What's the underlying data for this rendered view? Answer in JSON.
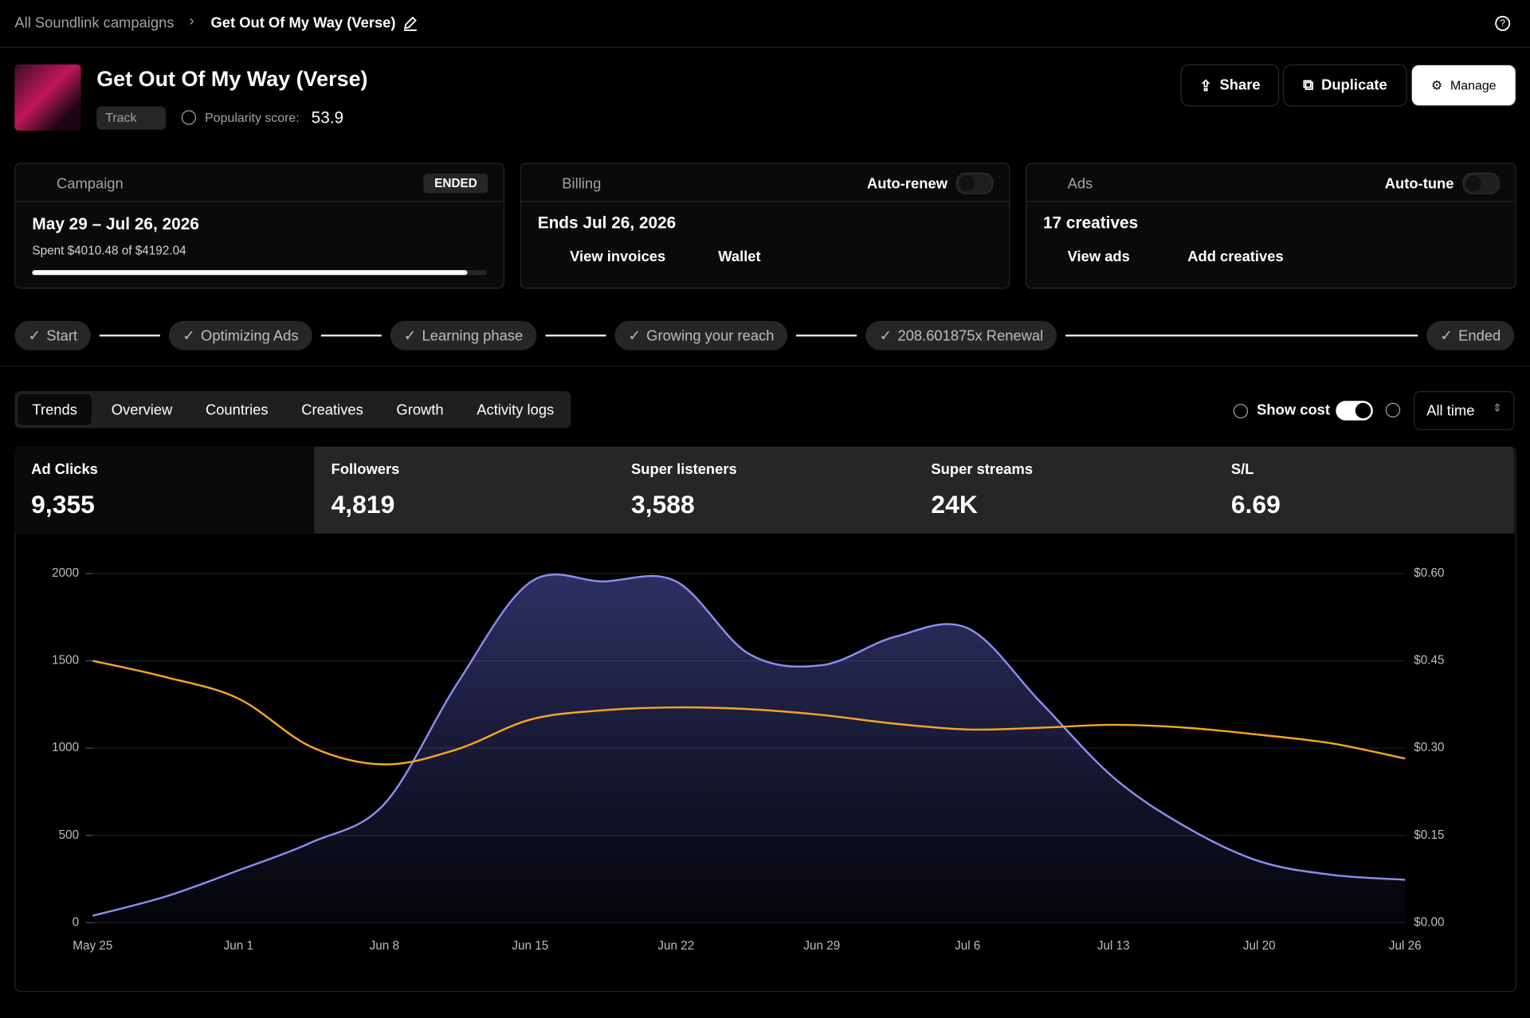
{
  "breadcrumb": {
    "parent": "All Soundlink campaigns",
    "current": "Get Out Of My Way (Verse)"
  },
  "header": {
    "title": "Get Out Of My Way (Verse)",
    "tag": "Track",
    "popularity_label": "Popularity score:",
    "popularity": 53.9
  },
  "actions": [
    "Share",
    "Duplicate",
    "Manage"
  ],
  "cards": {
    "campaign": {
      "label": "Campaign",
      "status": "ENDED",
      "dates": "May 29 – Jul 26, 2026",
      "spent": "Spent $4010.48 of $4192.04"
    },
    "billing": {
      "label": "Billing",
      "toggle": "Auto-renew",
      "ends": "Ends Jul 26, 2026",
      "links": [
        "View invoices",
        "Wallet"
      ]
    },
    "ads": {
      "label": "Ads",
      "toggle": "Auto-tune",
      "count": "17 creatives",
      "links": [
        "View ads",
        "Add creatives"
      ]
    }
  },
  "steps": [
    "Start",
    "Optimizing Ads",
    "Learning phase",
    "Growing your reach",
    "208.601875x Renewal",
    "Ended"
  ],
  "tabs": [
    "Trends",
    "Overview",
    "Countries",
    "Creatives",
    "Growth",
    "Activity logs"
  ],
  "controls": {
    "show_cost": "Show cost",
    "range": "All time"
  },
  "metrics": [
    {
      "label": "Ad Clicks",
      "value": "9,355"
    },
    {
      "label": "Followers",
      "value": "4,819"
    },
    {
      "label": "Super listeners",
      "value": "3,588"
    },
    {
      "label": "Super streams",
      "value": "24K"
    },
    {
      "label": "S/L",
      "value": "6.69"
    }
  ],
  "chart_data": {
    "type": "area",
    "categories": [
      "May 25",
      null,
      "Jun 1",
      null,
      "Jun 8",
      null,
      "Jun 15",
      null,
      "Jun 22",
      null,
      "Jun 29",
      null,
      "Jul 6",
      null,
      "Jul 13",
      null,
      "Jul 20",
      null,
      "Jul 26"
    ],
    "series": [
      {
        "color": "#8b8ff0",
        "values": [
          40,
          150,
          300,
          460,
          680,
          1370,
          1950,
          1955,
          1955,
          1540,
          1475,
          1637,
          1687,
          1263,
          832,
          547,
          352,
          274,
          246
        ]
      },
      {
        "color": "#f5a623",
        "axis": "y2",
        "values": [
          0.45,
          0.422,
          0.385,
          0.302,
          0.272,
          0.298,
          0.349,
          0.365,
          0.37,
          0.367,
          0.357,
          0.342,
          0.332,
          0.335,
          0.34,
          0.335,
          0.323,
          0.308,
          0.282
        ]
      }
    ],
    "ylim": [
      0,
      2000
    ],
    "yticks": [
      0,
      500,
      1000,
      1500,
      2000
    ],
    "y2lim": [
      0,
      0.6
    ],
    "y2ticks": [
      {
        "value": 0,
        "label": "$0.00"
      },
      {
        "value": 0.15,
        "label": "$0.15"
      },
      {
        "value": 0.3,
        "label": "$0.30"
      },
      {
        "value": 0.45,
        "label": "$0.45"
      },
      {
        "value": 0.6,
        "label": "$0.60"
      }
    ],
    "grid": true
  }
}
